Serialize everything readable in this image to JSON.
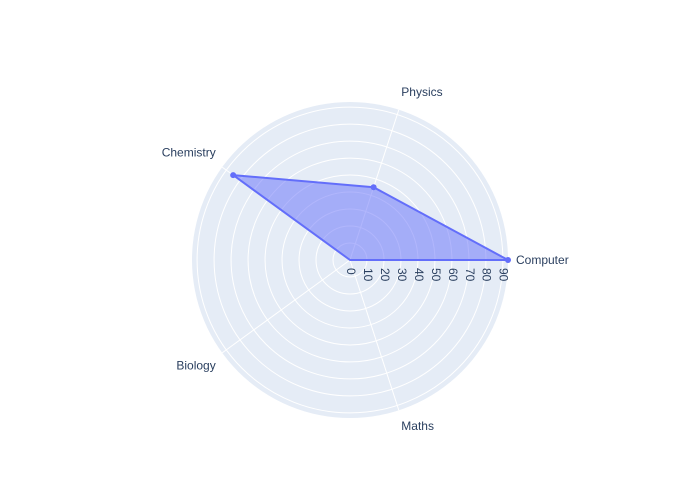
{
  "chart_data": {
    "type": "radar",
    "categories": [
      "Computer",
      "Physics",
      "Chemistry",
      "Biology",
      "Maths"
    ],
    "series": [
      {
        "values": [
          93,
          45,
          85,
          0,
          0
        ]
      }
    ],
    "radial_range": [
      0,
      93
    ],
    "radial_ticks": [
      0,
      10,
      20,
      30,
      40,
      50,
      60,
      70,
      80,
      90
    ],
    "grid": true,
    "colors": {
      "background": "#e5ecf6",
      "grid": "#ffffff",
      "line": "#636efa",
      "fill": "rgba(99,110,250,0.5)",
      "text": "#2a3f5f"
    }
  }
}
